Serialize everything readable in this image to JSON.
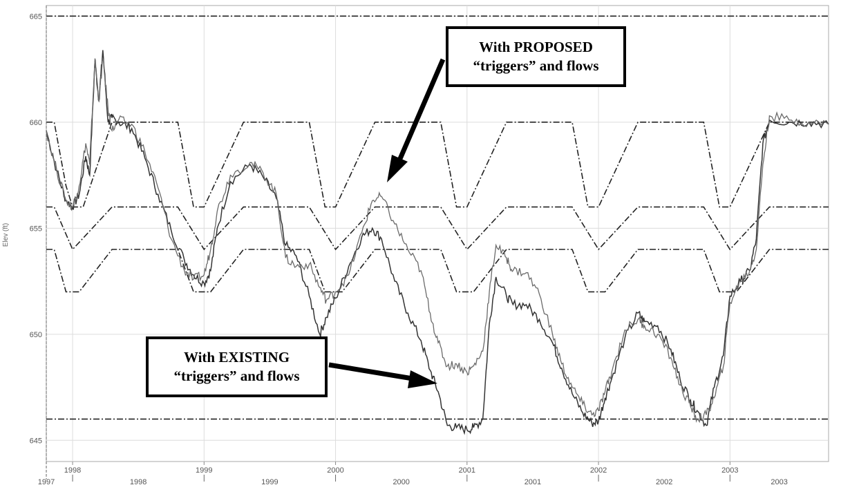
{
  "chart_data": {
    "type": "line",
    "title": "",
    "ylabel": "Elev (ft)",
    "xlabel": "",
    "ylim": [
      644,
      665.5
    ],
    "xlim": [
      1997.8,
      2003.75
    ],
    "grid": true,
    "y_ticks": [
      645,
      650,
      655,
      660,
      665
    ],
    "x_upper_ticks": [
      "1998",
      "1999",
      "2000",
      "2001",
      "2002",
      "2003"
    ],
    "x_lower_labels": [
      "1997",
      "1998",
      "1999",
      "2000",
      "2001",
      "2002",
      "2003"
    ],
    "guide_curves": [
      {
        "id": "upper-rule-curve",
        "style": "dash-dot",
        "points": [
          [
            1997.8,
            660
          ],
          [
            1997.86,
            660
          ],
          [
            1997.95,
            657
          ],
          [
            1998.0,
            656
          ],
          [
            1998.08,
            656
          ],
          [
            1998.3,
            660
          ],
          [
            1998.8,
            660
          ],
          [
            1998.92,
            656
          ],
          [
            1999.0,
            656
          ],
          [
            1999.3,
            660
          ],
          [
            1999.8,
            660
          ],
          [
            1999.92,
            656
          ],
          [
            2000.0,
            656
          ],
          [
            2000.3,
            660
          ],
          [
            2000.8,
            660
          ],
          [
            2000.92,
            656
          ],
          [
            2001.0,
            656
          ],
          [
            2001.3,
            660
          ],
          [
            2001.8,
            660
          ],
          [
            2001.92,
            656
          ],
          [
            2002.0,
            656
          ],
          [
            2002.3,
            660
          ],
          [
            2002.8,
            660
          ],
          [
            2002.92,
            656
          ],
          [
            2003.0,
            656
          ],
          [
            2003.3,
            660
          ],
          [
            2003.75,
            660
          ]
        ]
      },
      {
        "id": "middle-rule-curve",
        "style": "dash-dot",
        "points": [
          [
            1997.8,
            656
          ],
          [
            1997.86,
            656
          ],
          [
            1998.0,
            654
          ],
          [
            1998.3,
            656
          ],
          [
            1998.8,
            656
          ],
          [
            1999.0,
            654
          ],
          [
            1999.3,
            656
          ],
          [
            1999.8,
            656
          ],
          [
            2000.0,
            654
          ],
          [
            2000.3,
            656
          ],
          [
            2000.8,
            656
          ],
          [
            2001.0,
            654
          ],
          [
            2001.3,
            656
          ],
          [
            2001.8,
            656
          ],
          [
            2002.0,
            654
          ],
          [
            2002.3,
            656
          ],
          [
            2002.8,
            656
          ],
          [
            2003.0,
            654
          ],
          [
            2003.3,
            656
          ],
          [
            2003.75,
            656
          ]
        ]
      },
      {
        "id": "lower-rule-curve",
        "style": "dash-dot",
        "points": [
          [
            1997.8,
            654
          ],
          [
            1997.86,
            654
          ],
          [
            1997.95,
            652
          ],
          [
            1998.05,
            652
          ],
          [
            1998.3,
            654
          ],
          [
            1998.8,
            654
          ],
          [
            1998.92,
            652
          ],
          [
            1999.05,
            652
          ],
          [
            1999.3,
            654
          ],
          [
            1999.8,
            654
          ],
          [
            1999.92,
            652
          ],
          [
            2000.05,
            652
          ],
          [
            2000.3,
            654
          ],
          [
            2000.8,
            654
          ],
          [
            2000.92,
            652
          ],
          [
            2001.05,
            652
          ],
          [
            2001.3,
            654
          ],
          [
            2001.8,
            654
          ],
          [
            2001.92,
            652
          ],
          [
            2002.05,
            652
          ],
          [
            2002.3,
            654
          ],
          [
            2002.8,
            654
          ],
          [
            2002.92,
            652
          ],
          [
            2003.05,
            652
          ],
          [
            2003.3,
            654
          ],
          [
            2003.75,
            654
          ]
        ]
      },
      {
        "id": "top-limit-line",
        "style": "dash-dot",
        "points": [
          [
            1997.8,
            665
          ],
          [
            2003.75,
            665
          ]
        ]
      },
      {
        "id": "bottom-limit-line",
        "style": "dash-dot",
        "points": [
          [
            1997.8,
            646
          ],
          [
            2003.75,
            646
          ]
        ]
      }
    ],
    "series": [
      {
        "id": "proposed",
        "points": [
          [
            1997.8,
            659.6
          ],
          [
            1997.88,
            657.7
          ],
          [
            1997.95,
            656.3
          ],
          [
            1998.0,
            656.0
          ],
          [
            1998.05,
            656.6
          ],
          [
            1998.1,
            658.4
          ],
          [
            1998.13,
            657.5
          ],
          [
            1998.17,
            662.9
          ],
          [
            1998.2,
            661.0
          ],
          [
            1998.23,
            663.4
          ],
          [
            1998.27,
            660.0
          ],
          [
            1998.3,
            660.2
          ],
          [
            1998.35,
            660.0
          ],
          [
            1998.45,
            659.7
          ],
          [
            1998.55,
            658.3
          ],
          [
            1998.65,
            656.6
          ],
          [
            1998.75,
            654.9
          ],
          [
            1998.85,
            653.5
          ],
          [
            1998.92,
            652.8
          ],
          [
            1999.0,
            652.4
          ],
          [
            1999.05,
            653.0
          ],
          [
            1999.1,
            655.0
          ],
          [
            1999.2,
            657.2
          ],
          [
            1999.35,
            658.0
          ],
          [
            1999.45,
            657.4
          ],
          [
            1999.55,
            656.4
          ],
          [
            1999.62,
            654.2
          ],
          [
            1999.7,
            653.7
          ],
          [
            1999.8,
            651.8
          ],
          [
            1999.88,
            650.0
          ],
          [
            1999.93,
            650.8
          ],
          [
            2000.0,
            651.7
          ],
          [
            2000.1,
            653.2
          ],
          [
            2000.2,
            654.6
          ],
          [
            2000.28,
            655.0
          ],
          [
            2000.35,
            654.5
          ],
          [
            2000.45,
            652.5
          ],
          [
            2000.55,
            651.0
          ],
          [
            2000.65,
            649.7
          ],
          [
            2000.72,
            648.3
          ],
          [
            2000.78,
            647.3
          ],
          [
            2000.85,
            645.7
          ],
          [
            2000.92,
            645.6
          ],
          [
            2001.0,
            645.5
          ],
          [
            2001.05,
            645.6
          ],
          [
            2001.12,
            646.0
          ],
          [
            2001.17,
            650.5
          ],
          [
            2001.22,
            652.7
          ],
          [
            2001.3,
            651.8
          ],
          [
            2001.35,
            651.4
          ],
          [
            2001.45,
            651.4
          ],
          [
            2001.55,
            650.7
          ],
          [
            2001.65,
            649.6
          ],
          [
            2001.72,
            648.4
          ],
          [
            2001.8,
            647.2
          ],
          [
            2001.88,
            646.3
          ],
          [
            2001.95,
            645.8
          ],
          [
            2002.0,
            645.9
          ],
          [
            2002.05,
            647.0
          ],
          [
            2002.1,
            647.9
          ],
          [
            2002.2,
            649.8
          ],
          [
            2002.3,
            651.0
          ],
          [
            2002.35,
            650.6
          ],
          [
            2002.45,
            650.4
          ],
          [
            2002.55,
            649.3
          ],
          [
            2002.62,
            647.9
          ],
          [
            2002.7,
            646.9
          ],
          [
            2002.75,
            646.4
          ],
          [
            2002.82,
            645.7
          ],
          [
            2002.88,
            647.5
          ],
          [
            2002.95,
            649.0
          ],
          [
            2003.0,
            651.8
          ],
          [
            2003.08,
            652.5
          ],
          [
            2003.15,
            653.0
          ],
          [
            2003.2,
            654.5
          ],
          [
            2003.25,
            659.0
          ],
          [
            2003.3,
            660.1
          ],
          [
            2003.45,
            660.0
          ],
          [
            2003.6,
            660.0
          ],
          [
            2003.75,
            659.9
          ]
        ]
      },
      {
        "id": "existing",
        "points": [
          [
            1997.8,
            659.6
          ],
          [
            1997.88,
            657.7
          ],
          [
            1997.95,
            656.3
          ],
          [
            1998.0,
            656.0
          ],
          [
            1998.05,
            657.0
          ],
          [
            1998.1,
            659.0
          ],
          [
            1998.13,
            658.0
          ],
          [
            1998.17,
            663.0
          ],
          [
            1998.2,
            661.0
          ],
          [
            1998.23,
            663.0
          ],
          [
            1998.27,
            660.6
          ],
          [
            1998.3,
            659.6
          ],
          [
            1998.35,
            660.1
          ],
          [
            1998.45,
            659.9
          ],
          [
            1998.55,
            658.6
          ],
          [
            1998.65,
            656.9
          ],
          [
            1998.75,
            654.5
          ],
          [
            1998.85,
            653.0
          ],
          [
            1998.92,
            652.6
          ],
          [
            1999.0,
            652.8
          ],
          [
            1999.05,
            654.0
          ],
          [
            1999.1,
            655.8
          ],
          [
            1999.2,
            657.5
          ],
          [
            1999.35,
            658.1
          ],
          [
            1999.45,
            657.6
          ],
          [
            1999.55,
            656.6
          ],
          [
            1999.62,
            653.6
          ],
          [
            1999.7,
            653.2
          ],
          [
            1999.8,
            653.3
          ],
          [
            1999.88,
            652.2
          ],
          [
            1999.93,
            651.6
          ],
          [
            2000.0,
            652.0
          ],
          [
            2000.1,
            652.8
          ],
          [
            2000.2,
            654.8
          ],
          [
            2000.28,
            656.3
          ],
          [
            2000.35,
            656.5
          ],
          [
            2000.45,
            655.2
          ],
          [
            2000.55,
            654.0
          ],
          [
            2000.65,
            653.0
          ],
          [
            2000.72,
            651.0
          ],
          [
            2000.78,
            649.6
          ],
          [
            2000.85,
            648.5
          ],
          [
            2000.92,
            648.6
          ],
          [
            2001.0,
            648.2
          ],
          [
            2001.05,
            648.5
          ],
          [
            2001.12,
            649.2
          ],
          [
            2001.17,
            652.0
          ],
          [
            2001.22,
            654.2
          ],
          [
            2001.3,
            653.6
          ],
          [
            2001.35,
            653.0
          ],
          [
            2001.45,
            652.9
          ],
          [
            2001.55,
            651.9
          ],
          [
            2001.65,
            650.0
          ],
          [
            2001.72,
            648.6
          ],
          [
            2001.8,
            647.5
          ],
          [
            2001.88,
            646.7
          ],
          [
            2001.95,
            646.2
          ],
          [
            2002.0,
            646.4
          ],
          [
            2002.05,
            647.3
          ],
          [
            2002.1,
            648.2
          ],
          [
            2002.2,
            650.2
          ],
          [
            2002.3,
            650.7
          ],
          [
            2002.35,
            650.4
          ],
          [
            2002.45,
            650.0
          ],
          [
            2002.55,
            648.9
          ],
          [
            2002.62,
            647.6
          ],
          [
            2002.7,
            646.6
          ],
          [
            2002.75,
            646.0
          ],
          [
            2002.82,
            646.2
          ],
          [
            2002.88,
            647.0
          ],
          [
            2002.95,
            648.5
          ],
          [
            2003.0,
            651.5
          ],
          [
            2003.08,
            652.5
          ],
          [
            2003.15,
            653.0
          ],
          [
            2003.2,
            654.0
          ],
          [
            2003.25,
            658.0
          ],
          [
            2003.3,
            660.3
          ],
          [
            2003.45,
            660.1
          ],
          [
            2003.6,
            660.0
          ],
          [
            2003.75,
            659.9
          ]
        ]
      }
    ]
  },
  "annotations": {
    "proposed_label_line1": "With PROPOSED",
    "proposed_label_line2": "“triggers” and flows",
    "existing_label_line1": "With EXISTING",
    "existing_label_line2": "“triggers” and flows"
  },
  "colors": {
    "plot_background": "#ffffff",
    "grid": "#dcdcdc",
    "guide_curves": "#222222",
    "proposed_series": "#333333",
    "existing_series": "#6a6a6a",
    "callout_border": "#000000"
  }
}
